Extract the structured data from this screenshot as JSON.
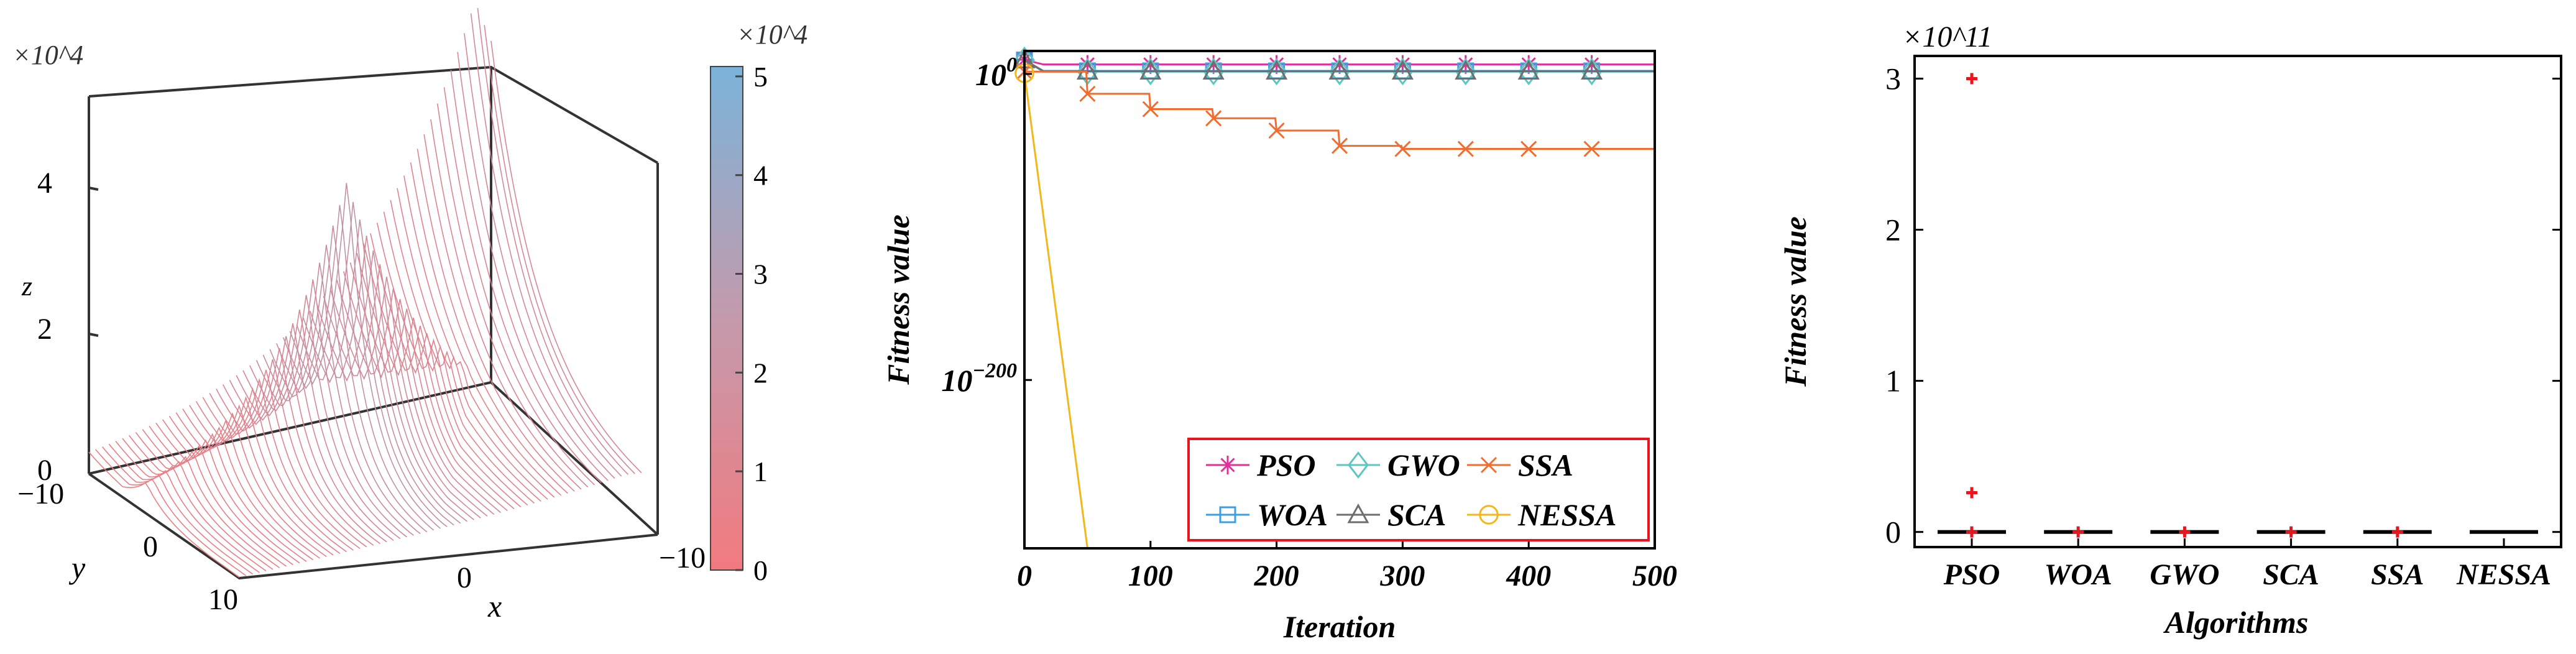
{
  "chart_data": [
    {
      "type": "surface3d",
      "title": "",
      "xlabel": "x",
      "ylabel": "y",
      "zlabel": "z",
      "z_exponent": "×10^4",
      "x_ticks": [
        "0",
        "−10"
      ],
      "y_ticks": [
        "−10",
        "0",
        "10"
      ],
      "z_ticks": [
        "0",
        "2",
        "4"
      ],
      "x_range": [
        -10,
        10
      ],
      "y_range": [
        -10,
        10
      ],
      "z_range": [
        0,
        5
      ],
      "surface_peaks": [
        {
          "x": 10,
          "y": 10,
          "z": 3.9
        },
        {
          "x": -10,
          "y": -10,
          "z": 5.1
        }
      ],
      "colorbar": {
        "exponent": "×10^4",
        "ticks": [
          "0",
          "1",
          "2",
          "3",
          "4",
          "5"
        ],
        "range": [
          0,
          5.1
        ],
        "color_low": "#f27a7f",
        "color_high": "#7bb3d9"
      }
    },
    {
      "type": "line",
      "xlabel": "Iteration",
      "ylabel": "Fitness value",
      "yscale": "log",
      "xlim": [
        0,
        500
      ],
      "x_ticks": [
        "0",
        "100",
        "200",
        "300",
        "400",
        "500"
      ],
      "y_tick_labels": [
        {
          "base": "10",
          "exp": "0",
          "log10": 0
        },
        {
          "base": "10",
          "exp": "−200",
          "log10": -200
        }
      ],
      "ylim_log10": [
        -310,
        15
      ],
      "legend": {
        "position": "lower-right",
        "entries": [
          {
            "name": "PSO",
            "color": "#e0309b",
            "marker": "asterisk"
          },
          {
            "name": "GWO",
            "color": "#5cc6c2",
            "marker": "diamond"
          },
          {
            "name": "SSA",
            "color": "#f26c2e",
            "marker": "x"
          },
          {
            "name": "WOA",
            "color": "#3d9fe0",
            "marker": "square"
          },
          {
            "name": "SCA",
            "color": "#6e6e6e",
            "marker": "triangle"
          },
          {
            "name": "NESSA",
            "color": "#f2b71a",
            "marker": "circle"
          }
        ]
      },
      "series": [
        {
          "name": "PSO",
          "x": [
            0,
            500
          ],
          "log10_y": [
            9.3,
            6.2
          ]
        },
        {
          "name": "WOA",
          "x": [
            0,
            500
          ],
          "log10_y": [
            9.1,
            2.0
          ]
        },
        {
          "name": "GWO",
          "x": [
            0,
            500
          ],
          "log10_y": [
            9.0,
            1.5
          ]
        },
        {
          "name": "SCA",
          "x": [
            0,
            500
          ],
          "log10_y": [
            9.2,
            1.8
          ]
        },
        {
          "name": "SSA",
          "x": [
            0,
            50,
            100,
            150,
            200,
            250,
            300,
            350,
            400,
            450,
            500
          ],
          "log10_y": [
            1.5,
            -13,
            -23,
            -29,
            -37,
            -47,
            -49,
            -49,
            -49,
            -49,
            -49
          ]
        },
        {
          "name": "NESSA",
          "x": [
            0,
            50
          ],
          "log10_y": [
            0.5,
            -305
          ]
        }
      ],
      "marker_x": [
        0,
        50,
        100,
        150,
        200,
        250,
        300,
        350,
        400,
        450
      ]
    },
    {
      "type": "boxplot",
      "xlabel": "Algorithms",
      "ylabel": "Fitness value",
      "y_exponent": "×10^11",
      "categories": [
        "PSO",
        "WOA",
        "GWO",
        "SCA",
        "SSA",
        "NESSA"
      ],
      "ylim": [
        -0.1,
        3.15
      ],
      "y_ticks": [
        "0",
        "1",
        "2",
        "3"
      ],
      "median_values": [
        0,
        0,
        0,
        0,
        0,
        0
      ],
      "outliers": [
        {
          "category": "PSO",
          "value": 3.0
        },
        {
          "category": "PSO",
          "value": 0.26
        },
        {
          "category": "PSO",
          "value": 0.0
        },
        {
          "category": "WOA",
          "value": 0.0
        },
        {
          "category": "GWO",
          "value": 0.0
        },
        {
          "category": "SCA",
          "value": 0.0
        },
        {
          "category": "SSA",
          "value": 0.0
        }
      ],
      "outlier_color": "#e8141e",
      "box_color": "#000000"
    }
  ]
}
